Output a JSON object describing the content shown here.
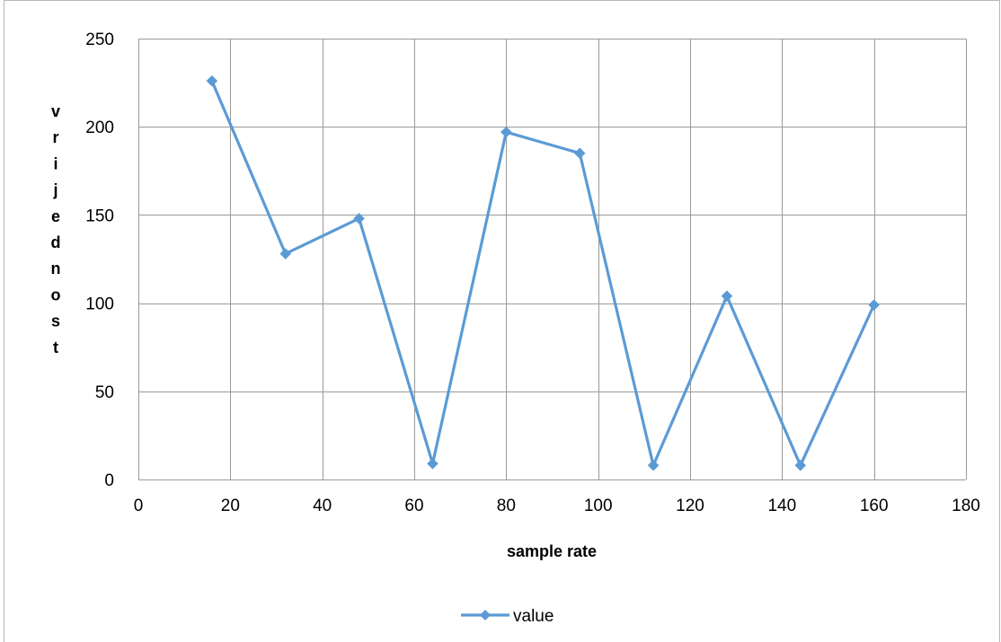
{
  "chart_data": {
    "type": "line",
    "title": "",
    "xlabel": "sample rate",
    "ylabel": "vrijednost",
    "xlim": [
      0,
      180
    ],
    "ylim": [
      0,
      250
    ],
    "xticks": [
      0,
      20,
      40,
      60,
      80,
      100,
      120,
      140,
      160,
      180
    ],
    "yticks": [
      0,
      50,
      100,
      150,
      200,
      250
    ],
    "grid": true,
    "legend_position": "bottom",
    "series": [
      {
        "name": "value",
        "color": "#5b9bd5",
        "marker": "diamond",
        "x": [
          16,
          32,
          48,
          64,
          80,
          96,
          112,
          128,
          144,
          160
        ],
        "y": [
          226,
          128,
          148,
          9,
          197,
          185,
          8,
          104,
          8,
          99
        ]
      }
    ]
  }
}
